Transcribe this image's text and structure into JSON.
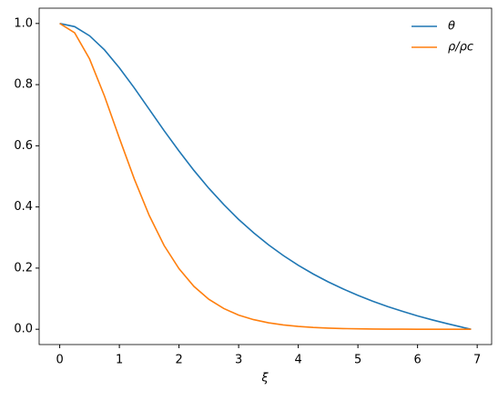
{
  "chart_data": {
    "type": "line",
    "xlabel": "ξ",
    "x": [
      0,
      0.25,
      0.5,
      0.75,
      1,
      1.25,
      1.5,
      1.75,
      2,
      2.25,
      2.5,
      2.75,
      3,
      3.25,
      3.5,
      3.75,
      4,
      4.25,
      4.5,
      4.75,
      5,
      5.25,
      5.5,
      5.75,
      6,
      6.25,
      6.5,
      6.75,
      6.897
    ],
    "series": [
      {
        "name": "θ",
        "color": "#1f77b4",
        "values": [
          1,
          0.9897,
          0.9598,
          0.9137,
          0.855,
          0.7893,
          0.7195,
          0.6495,
          0.5829,
          0.5195,
          0.4611,
          0.408,
          0.3592,
          0.3158,
          0.2763,
          0.241,
          0.2093,
          0.1808,
          0.1551,
          0.132,
          0.1108,
          0.0917,
          0.0742,
          0.0584,
          0.0437,
          0.0305,
          0.0182,
          0.0066,
          0
        ]
      },
      {
        "name": "ρ/ρc",
        "color": "#ff7f0e",
        "values": [
          1,
          0.9694,
          0.8842,
          0.7628,
          0.625,
          0.4917,
          0.3725,
          0.274,
          0.1981,
          0.1402,
          0.098,
          0.0679,
          0.0463,
          0.0315,
          0.0211,
          0.014,
          0.0092,
          0.0059,
          0.0037,
          0.0023,
          0.0014,
          0.0008,
          0.0004,
          0.0002,
          0.0001,
          0,
          0,
          0,
          0
        ]
      }
    ],
    "xlim": [
      -0.345,
      7.242
    ],
    "ylim": [
      -0.05,
      1.05
    ],
    "xticks": [
      0,
      1,
      2,
      3,
      4,
      5,
      6,
      7
    ],
    "yticks": [
      {
        "value": 0,
        "label": "0.0"
      },
      0.2,
      0.4,
      0.6,
      0.8,
      {
        "value": 1,
        "label": "1.0"
      }
    ],
    "grid": false,
    "legend": "upper right"
  }
}
